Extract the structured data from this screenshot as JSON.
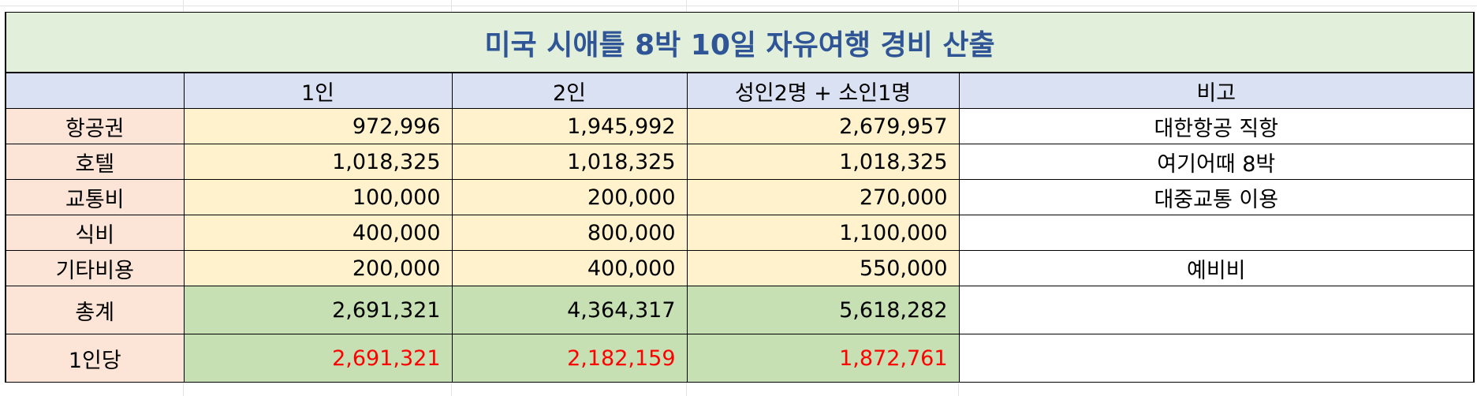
{
  "title": "미국 시애틀 8박 10일 자유여행 경비 산출",
  "headers": [
    "",
    "1인",
    "2인",
    "성인2명 + 소인1명",
    "비고"
  ],
  "rows": [
    {
      "label": "항공권",
      "one": "972,996",
      "two": "1,945,992",
      "family": "2,679,957",
      "note": "대한항공 직항"
    },
    {
      "label": "호텔",
      "one": "1,018,325",
      "two": "1,018,325",
      "family": "1,018,325",
      "note": "여기어때 8박"
    },
    {
      "label": "교통비",
      "one": "100,000",
      "two": "200,000",
      "family": "270,000",
      "note": "대중교통 이용"
    },
    {
      "label": "식비",
      "one": "400,000",
      "two": "800,000",
      "family": "1,100,000",
      "note": ""
    },
    {
      "label": "기타비용",
      "one": "200,000",
      "two": "400,000",
      "family": "550,000",
      "note": "예비비"
    }
  ],
  "total": {
    "label": "총계",
    "one": "2,691,321",
    "two": "4,364,317",
    "family": "5,618,282",
    "note": ""
  },
  "per_person": {
    "label": "1인당",
    "one": "2,691,321",
    "two": "2,182,159",
    "family": "1,872,761",
    "note": ""
  },
  "colors": {
    "title_bg": "#e2efda",
    "title_text": "#2f5597",
    "header_bg": "#d9e1f2",
    "label_bg": "#fce4d6",
    "value_bg": "#fff2cc",
    "total_bg": "#c6e0b4",
    "per_person_text": "#ff0000"
  }
}
